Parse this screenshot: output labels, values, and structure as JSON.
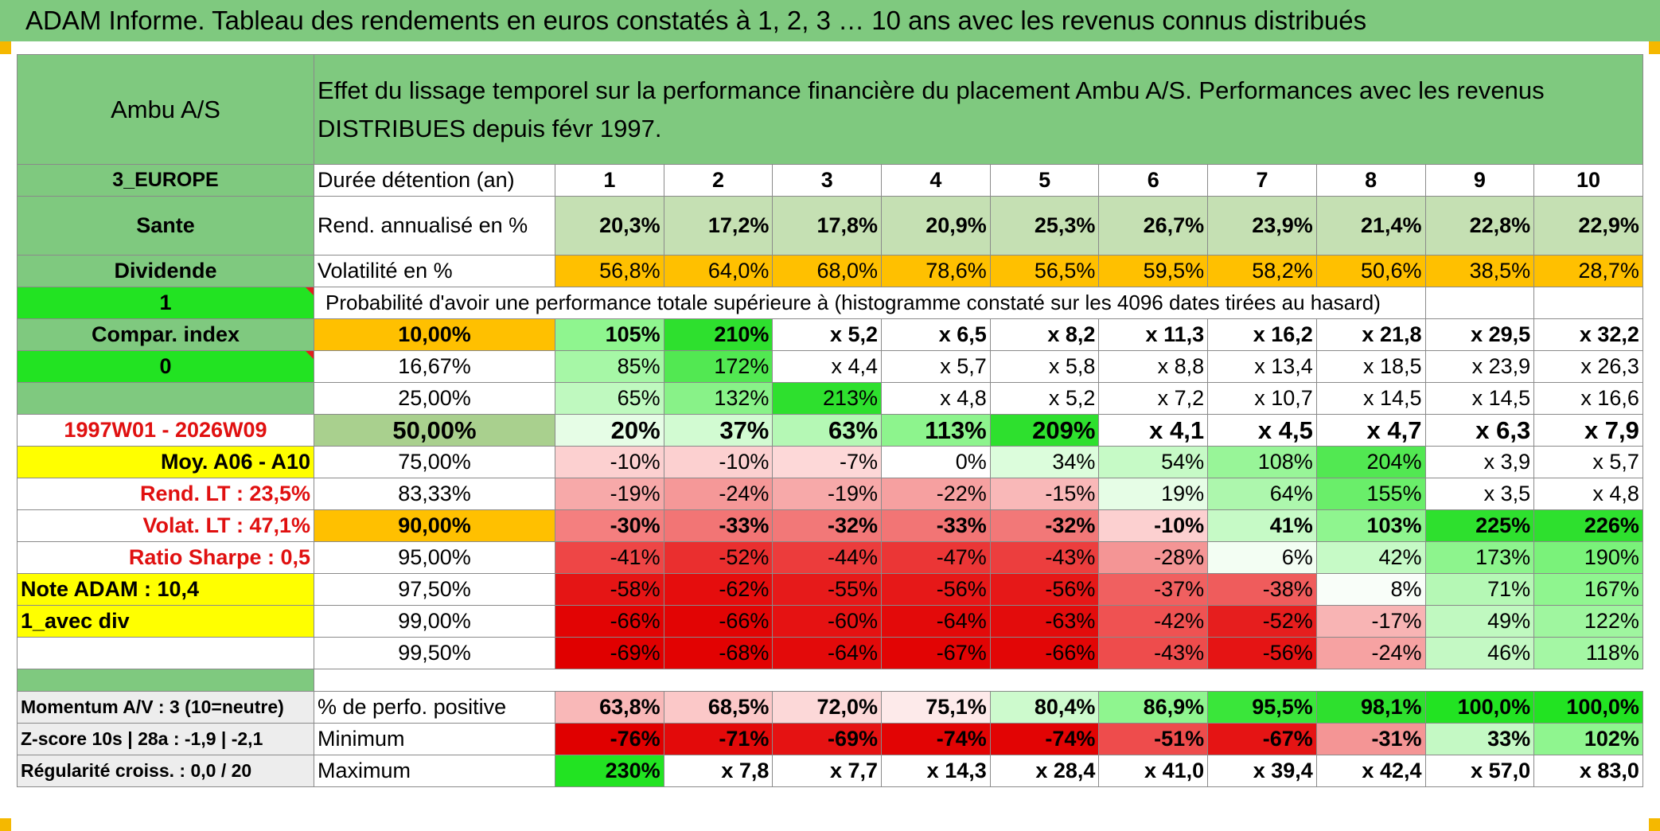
{
  "banner": "ADAM Informe. Tableau des rendements en euros constatés à 1, 2, 3 … 10 ans avec les revenus connus distribués",
  "fund_name": "Ambu A/S",
  "description": "Effet du lissage temporel sur la performance financière du placement Ambu A/S. Performances avec les revenus DISTRIBUES depuis févr 1997.",
  "side": {
    "region": "3_EUROPE",
    "sector": "Sante",
    "distribution": "Dividende",
    "flag1": "1",
    "compar_label": "Compar. index",
    "flag2": "0",
    "empty": "",
    "period": "1997W01 - 2026W09",
    "moy": "Moy. A06 - A10",
    "rend_lt": "Rend. LT :    23,5%",
    "volat_lt": "Volat. LT :    47,1%",
    "sharpe": "Ratio Sharpe :    0,5",
    "note": "Note ADAM : 10,4",
    "mode": "1_avec div",
    "momentum": "Momentum A/V : 3 (10=neutre)",
    "zscore": "Z-score 10s | 28a : -1,9 | -2,1",
    "regularite": "Régularité croiss. : 0,0 / 20"
  },
  "durations_label": "Durée détention (an)",
  "years": [
    "1",
    "2",
    "3",
    "4",
    "5",
    "6",
    "7",
    "8",
    "9",
    "10"
  ],
  "rend_label": "Rend. annualisé en %",
  "rend": [
    "20,3%",
    "17,2%",
    "17,8%",
    "20,9%",
    "25,3%",
    "26,7%",
    "23,9%",
    "21,4%",
    "22,8%",
    "22,9%"
  ],
  "vol_label": "Volatilité en %",
  "vol": [
    "56,8%",
    "64,0%",
    "68,0%",
    "78,6%",
    "56,5%",
    "59,5%",
    "58,2%",
    "50,6%",
    "38,5%",
    "28,7%"
  ],
  "proba_label": "Probabilité d'avoir une performance totale supérieure à (histogramme constaté sur les 4096 dates tirées au hasard)",
  "percentiles": [
    {
      "p": "10,00%",
      "v": [
        "105%",
        "210%",
        "x 5,2",
        "x 6,5",
        "x 8,2",
        "x 11,3",
        "x 16,2",
        "x 21,8",
        "x 29,5",
        "x 32,2"
      ]
    },
    {
      "p": "16,67%",
      "v": [
        "85%",
        "172%",
        "x 4,4",
        "x 5,7",
        "x 5,8",
        "x 8,8",
        "x 13,4",
        "x 18,5",
        "x 23,9",
        "x 26,3"
      ]
    },
    {
      "p": "25,00%",
      "v": [
        "65%",
        "132%",
        "213%",
        "x 4,8",
        "x 5,2",
        "x 7,2",
        "x 10,7",
        "x 14,5",
        "x 14,5",
        "x 16,6"
      ]
    },
    {
      "p": "50,00%",
      "v": [
        "20%",
        "37%",
        "63%",
        "113%",
        "209%",
        "x 4,1",
        "x 4,5",
        "x 4,7",
        "x 6,3",
        "x 7,9"
      ]
    },
    {
      "p": "75,00%",
      "v": [
        "-10%",
        "-10%",
        "-7%",
        "0%",
        "34%",
        "54%",
        "108%",
        "204%",
        "x 3,9",
        "x 5,7"
      ]
    },
    {
      "p": "83,33%",
      "v": [
        "-19%",
        "-24%",
        "-19%",
        "-22%",
        "-15%",
        "19%",
        "64%",
        "155%",
        "x 3,5",
        "x 4,8"
      ]
    },
    {
      "p": "90,00%",
      "v": [
        "-30%",
        "-33%",
        "-32%",
        "-33%",
        "-32%",
        "-10%",
        "41%",
        "103%",
        "225%",
        "226%"
      ]
    },
    {
      "p": "95,00%",
      "v": [
        "-41%",
        "-52%",
        "-44%",
        "-47%",
        "-43%",
        "-28%",
        "6%",
        "42%",
        "173%",
        "190%"
      ]
    },
    {
      "p": "97,50%",
      "v": [
        "-58%",
        "-62%",
        "-55%",
        "-56%",
        "-56%",
        "-37%",
        "-38%",
        "8%",
        "71%",
        "167%"
      ]
    },
    {
      "p": "99,00%",
      "v": [
        "-66%",
        "-66%",
        "-60%",
        "-64%",
        "-63%",
        "-42%",
        "-52%",
        "-17%",
        "49%",
        "122%"
      ]
    },
    {
      "p": "99,50%",
      "v": [
        "-69%",
        "-68%",
        "-64%",
        "-67%",
        "-66%",
        "-43%",
        "-56%",
        "-24%",
        "46%",
        "118%"
      ]
    }
  ],
  "positive_label": "% de perfo. positive",
  "positive": [
    "63,8%",
    "68,5%",
    "72,0%",
    "75,1%",
    "80,4%",
    "86,9%",
    "95,5%",
    "98,1%",
    "100,0%",
    "100,0%"
  ],
  "min_label": "Minimum",
  "min": [
    "-76%",
    "-71%",
    "-69%",
    "-74%",
    "-74%",
    "-51%",
    "-67%",
    "-31%",
    "33%",
    "102%"
  ],
  "max_label": "Maximum",
  "max": [
    "230%",
    "x 7,8",
    "x 7,7",
    "x 14,3",
    "x 28,4",
    "x 41,0",
    "x 39,4",
    "x 42,4",
    "x 57,0",
    "x 83,0"
  ],
  "colors": {
    "header_green": "#7fc97f",
    "bright_green": "#22e322",
    "yellow": "#ffff00",
    "orange": "#ffc000",
    "light_green": "#c5e0b3",
    "red_text": "#e01010"
  },
  "cell_colors": {
    "percentiles": [
      [
        "#8ff58f",
        "#2ee02e",
        "#fff",
        "#fff",
        "#fff",
        "#fff",
        "#fff",
        "#fff",
        "#fff",
        "#fff"
      ],
      [
        "#a6f7a6",
        "#52e852",
        "#fff",
        "#fff",
        "#fff",
        "#fff",
        "#fff",
        "#fff",
        "#fff",
        "#fff"
      ],
      [
        "#bff9bf",
        "#88f288",
        "#2ee02e",
        "#fff",
        "#fff",
        "#fff",
        "#fff",
        "#fff",
        "#fff",
        "#fff"
      ],
      [
        "#e6fde6",
        "#d2fbd2",
        "#b5f8b5",
        "#8df48d",
        "#2ee02e",
        "#fff",
        "#fff",
        "#fff",
        "#fff",
        "#fff"
      ],
      [
        "#fcd0d0",
        "#fcd0d0",
        "#fdd8d8",
        "#fff",
        "#dcfddc",
        "#c6fac6",
        "#98f598",
        "#52e852",
        "#fff",
        "#fff"
      ],
      [
        "#f7a9a9",
        "#f59898",
        "#f7a9a9",
        "#f6a0a0",
        "#f9b8b8",
        "#e6fde6",
        "#adf7ad",
        "#6aee6a",
        "#fff",
        "#fff"
      ],
      [
        "#f47f7f",
        "#f27575",
        "#f27878",
        "#f27575",
        "#f27878",
        "#fcd0d0",
        "#c6fac6",
        "#8ff58f",
        "#2ee02e",
        "#2ee02e"
      ],
      [
        "#ee4646",
        "#ea2f2f",
        "#ec3c3c",
        "#eb3636",
        "#ec3e3e",
        "#f49595",
        "#f3fef3",
        "#c6fac6",
        "#8df48d",
        "#7af27a"
      ],
      [
        "#e51515",
        "#e50d0d",
        "#e61a1a",
        "#e61818",
        "#e61818",
        "#f06060",
        "#ef5c5c",
        "#f9fef9",
        "#b5f8b5",
        "#8ff58f"
      ],
      [
        "#e20404",
        "#e20404",
        "#e51212",
        "#e30a0a",
        "#e30c0c",
        "#ef5252",
        "#e61e1e",
        "#f8b4b4",
        "#c0f9c0",
        "#9ff69f"
      ],
      [
        "#e00000",
        "#e20202",
        "#e30a0a",
        "#e20404",
        "#e20606",
        "#ee4c4c",
        "#e51414",
        "#f6a2a2",
        "#c4f9c4",
        "#a4f7a4"
      ]
    ],
    "positive": [
      "#f9b8b8",
      "#fbc8c8",
      "#fcd8d8",
      "#fdeaea",
      "#cdfacd",
      "#8ff58f",
      "#3ae63a",
      "#2ee02e",
      "#22e322",
      "#22e322"
    ],
    "min": [
      "#e00000",
      "#e30a0a",
      "#e51212",
      "#e20404",
      "#e20404",
      "#ee4c4c",
      "#e51414",
      "#f49595",
      "#c4f9c4",
      "#8ff58f"
    ],
    "max": [
      "#22e322",
      "#fff",
      "#fff",
      "#fff",
      "#fff",
      "#fff",
      "#fff",
      "#fff",
      "#fff",
      "#fff"
    ]
  }
}
